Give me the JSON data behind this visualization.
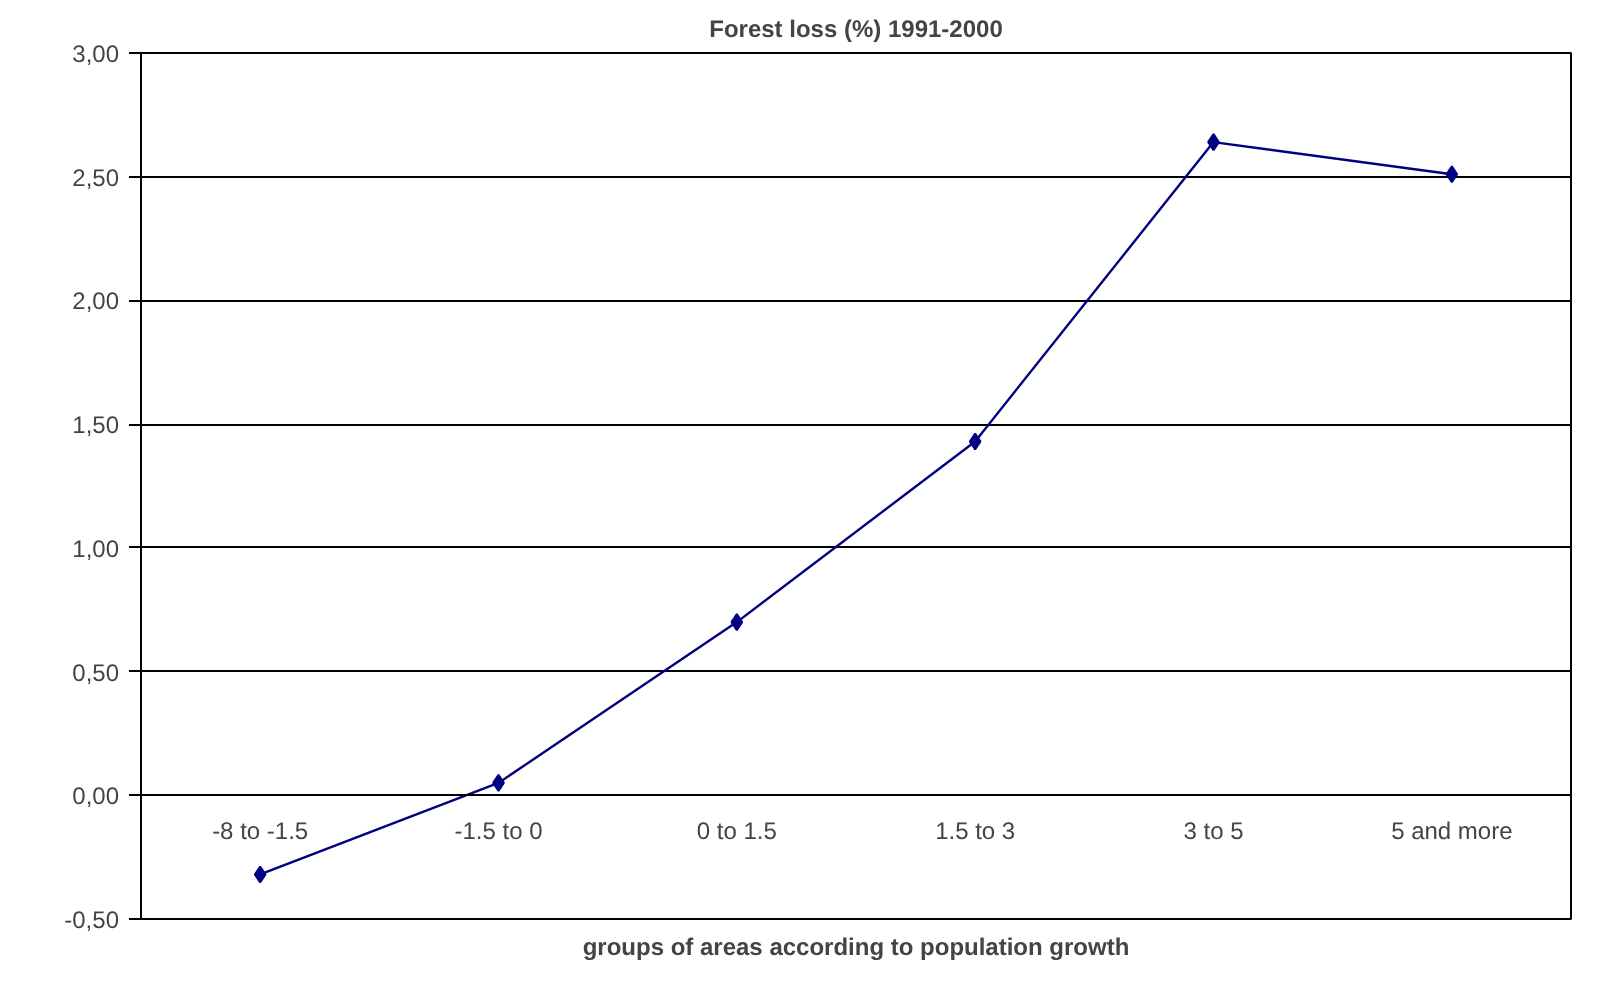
{
  "chart_data": {
    "type": "line",
    "title": "Forest loss (%) 1991-2000",
    "xlabel": "groups of areas according to population growth",
    "categories": [
      "-8 to -1.5",
      "-1.5 to 0",
      "0 to 1.5",
      "1.5 to 3",
      "3 to 5",
      "5 and more"
    ],
    "series": [
      {
        "color": "#000080",
        "values": [
          -0.32,
          0.05,
          0.7,
          1.43,
          2.64,
          2.51
        ]
      }
    ],
    "ylim": [
      -0.5,
      3.0
    ],
    "yticks": [
      {
        "value": -0.5,
        "label": "-0,50"
      },
      {
        "value": 0,
        "label": "0,00"
      },
      {
        "value": 0.5,
        "label": "0,50"
      },
      {
        "value": 1.0,
        "label": "1,00"
      },
      {
        "value": 1.5,
        "label": "1,50"
      },
      {
        "value": 2.0,
        "label": "2,00"
      },
      {
        "value": 2.5,
        "label": "2,50"
      },
      {
        "value": 3.0,
        "label": "3,00"
      }
    ],
    "grid": "y",
    "marker": "diamond",
    "line_style": "solid"
  }
}
